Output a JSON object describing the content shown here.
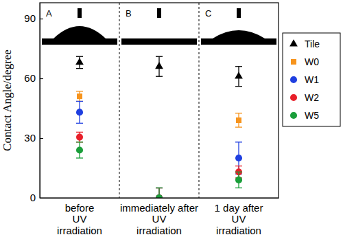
{
  "chart_data": {
    "type": "scatter",
    "y_label": "Contact Angle/degree",
    "categories": [
      "before\nUV\nirradiation",
      "immediately after\nUV\nirradiation",
      "1 day after\nUV\nirradiation"
    ],
    "annotations": [
      "A",
      "B",
      "C"
    ],
    "ylim": [
      0,
      98
    ],
    "yticks": [
      0,
      30,
      60,
      90
    ],
    "legend": "right",
    "series": [
      {
        "name": "Tile",
        "color": "#000000",
        "marker": "triangle",
        "values": [
          68,
          66,
          61
        ],
        "errors": [
          3,
          5,
          5
        ]
      },
      {
        "name": "W0",
        "color": "#f7941d",
        "marker": "square",
        "values": [
          51,
          0,
          39
        ],
        "errors": [
          2.5,
          5,
          3.5
        ]
      },
      {
        "name": "W1",
        "color": "#1f3fe0",
        "marker": "circle",
        "values": [
          43,
          0,
          20
        ],
        "errors": [
          5.5,
          5,
          8
        ]
      },
      {
        "name": "W2",
        "color": "#e8202a",
        "marker": "circle",
        "values": [
          30.5,
          0,
          13
        ],
        "errors": [
          2.5,
          5,
          3
        ]
      },
      {
        "name": "W5",
        "color": "#1a9e3a",
        "marker": "circle",
        "values": [
          24,
          0,
          9
        ],
        "errors": [
          4,
          5,
          4
        ]
      }
    ]
  }
}
